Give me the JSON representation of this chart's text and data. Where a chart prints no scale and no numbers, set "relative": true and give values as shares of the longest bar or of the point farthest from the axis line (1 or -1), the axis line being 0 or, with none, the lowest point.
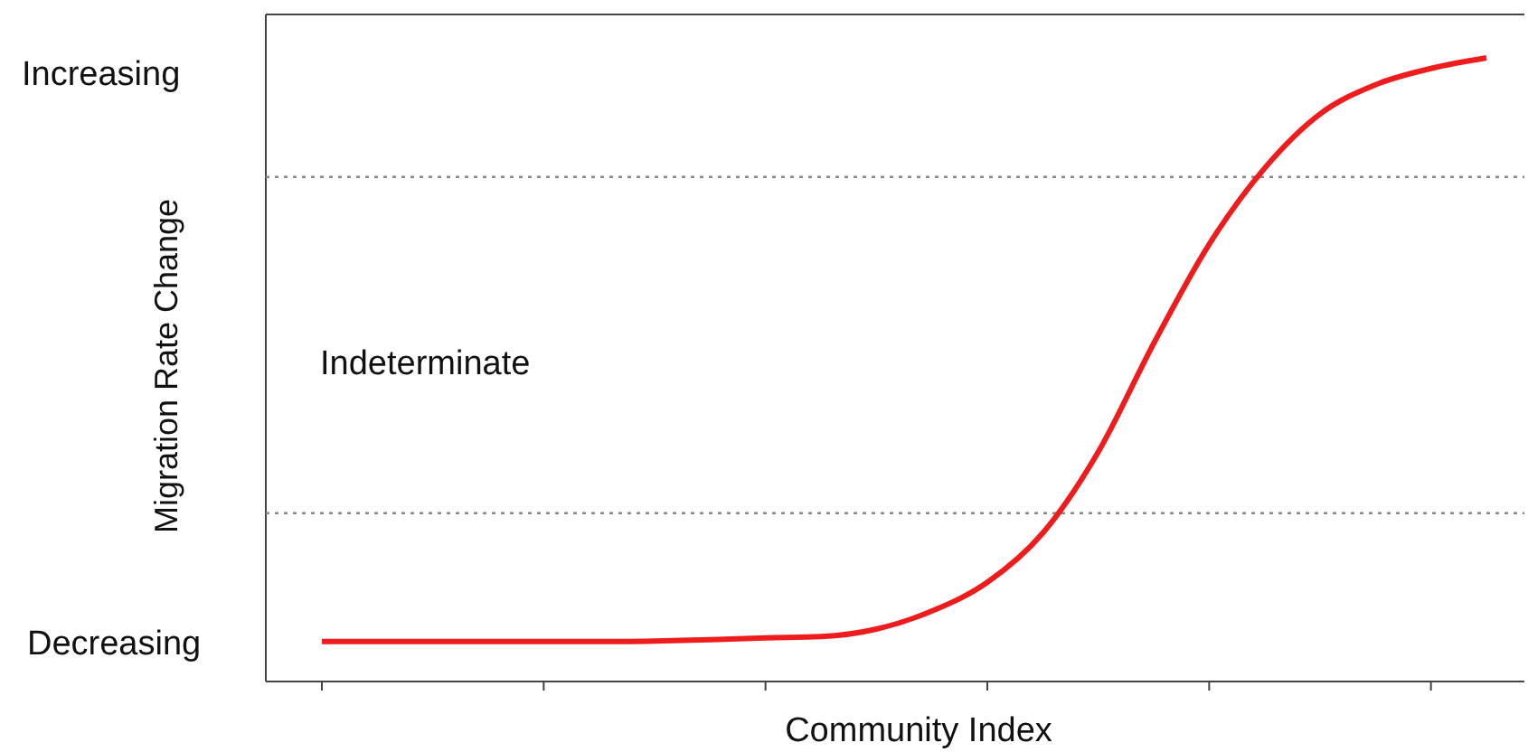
{
  "chart_data": {
    "type": "line",
    "relative": true,
    "xlabel": "Community Index",
    "ylabel": "Migration Rate Change",
    "categories": [
      null,
      null,
      null,
      null,
      null,
      null,
      null,
      null,
      null,
      null,
      null,
      null,
      null,
      null,
      null,
      null,
      null,
      null,
      null,
      null,
      null,
      null
    ],
    "series": [
      {
        "color": "#ee1c1c",
        "values": [
          0.064,
          0.064,
          0.064,
          0.064,
          0.064,
          0.064,
          0.065,
          0.067,
          0.07,
          0.072,
          0.084,
          0.113,
          0.159,
          0.238,
          0.368,
          0.542,
          0.701,
          0.823,
          0.91,
          0.957,
          0.983,
          1
        ]
      }
    ],
    "ref_lines": [
      {
        "axis": "y",
        "value": 0.809,
        "color": "#888888",
        "line_style": "dotted"
      },
      {
        "axis": "y",
        "value": 0.27,
        "color": "#888888",
        "line_style": "dotted"
      }
    ],
    "annotations": [
      "Increasing",
      "Decreasing",
      "Indeterminate"
    ],
    "marker": "none",
    "line_style": "solid"
  }
}
